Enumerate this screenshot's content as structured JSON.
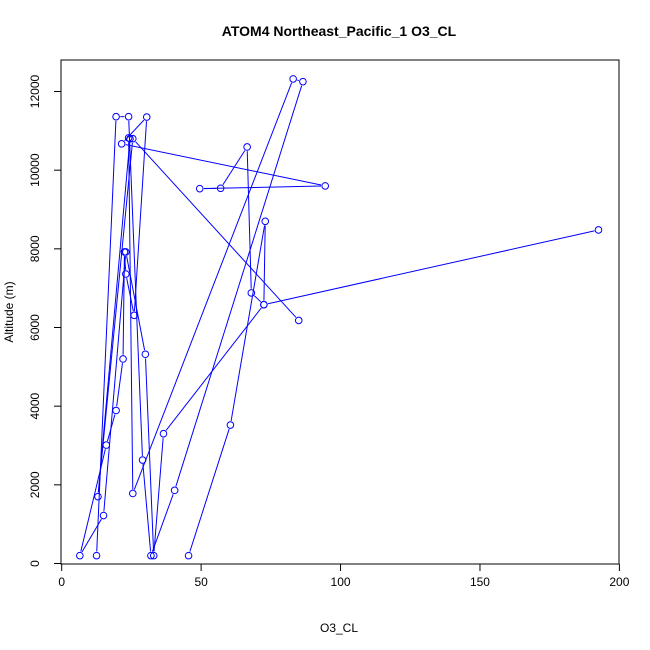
{
  "chart_data": {
    "type": "line",
    "title": "ATOM4 Northeast_Pacific_1 O3_CL",
    "xlabel": "O3_CL",
    "ylabel": "Altitude (m)",
    "xlim": [
      0,
      200
    ],
    "ylim": [
      0,
      12000
    ],
    "x_ticks": [
      0,
      50,
      100,
      150,
      200
    ],
    "y_ticks": [
      0,
      2000,
      4000,
      6000,
      8000,
      10000,
      12000
    ],
    "grid": false,
    "line_color": "#0000ff",
    "marker": "open-circle",
    "series": [
      {
        "x": [
          45.5,
          60.5,
          73.0,
          72.5,
          68.0,
          66.5,
          57.0,
          49.5,
          94.5,
          21.5,
          30.5,
          26.0,
          23.0,
          22.5,
          22.0,
          19.5,
          16.0,
          6.5,
          15.0,
          23.0,
          30.0,
          33.0,
          36.5,
          72.5,
          192.5
        ],
        "y": [
          200,
          3520,
          8700,
          6580,
          6880,
          10590,
          9540,
          9530,
          9600,
          10670,
          11350,
          6310,
          7360,
          7920,
          5200,
          3890,
          3010,
          200,
          1220,
          7920,
          5320,
          200,
          3300,
          6580,
          8480
        ]
      },
      {
        "x": [
          12.5,
          19.5,
          24.0,
          29.0,
          32.0,
          40.5,
          86.5,
          83.0,
          25.5,
          24.0,
          24.5,
          13.0,
          25.5,
          85.0
        ],
        "y": [
          200,
          11360,
          11360,
          2630,
          200,
          1860,
          12250,
          12320,
          1780,
          10820,
          10800,
          1700,
          10800,
          6180
        ]
      }
    ]
  }
}
